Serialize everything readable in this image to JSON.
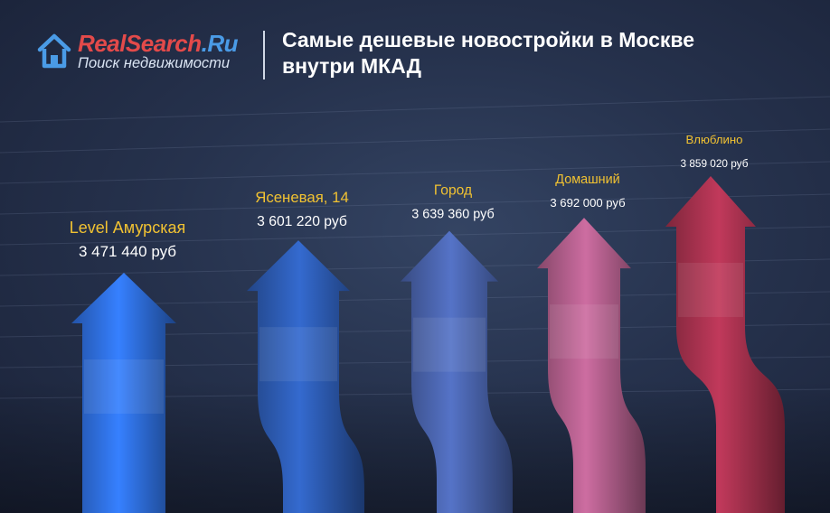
{
  "header": {
    "brand_part1": "RealSearch",
    "brand_part2": ".Ru",
    "tagline": "Поиск недвижимости",
    "title": "Самые дешевые новостройки в Москве внутри МКАД"
  },
  "colors": {
    "brand_red": "#e34a4a",
    "brand_blue": "#4a9be6",
    "label_yellow": "#f1c232",
    "background": "#26324d"
  },
  "chart_data": {
    "type": "bar",
    "title": "Самые дешевые новостройки в Москве внутри МКАД",
    "categories": [
      "Level Амурская",
      "Ясеневая, 14",
      "Город",
      "Домашний",
      "Влюблино"
    ],
    "values": [
      3471440,
      3601220,
      3639360,
      3692000,
      3859020
    ],
    "value_labels": [
      "3 471 440 руб",
      "3 601 220 руб",
      "3 639 360 руб",
      "3 692 000 руб",
      "3 859 020 руб"
    ],
    "colors": [
      "#2f6fe0",
      "#2d5cb4",
      "#4a64ad",
      "#b25f8c",
      "#a8324f"
    ],
    "unit": "руб",
    "xlabel": "",
    "ylabel": "",
    "ylim": [
      3250000,
      3950000
    ],
    "grid": true,
    "legend": "none"
  }
}
